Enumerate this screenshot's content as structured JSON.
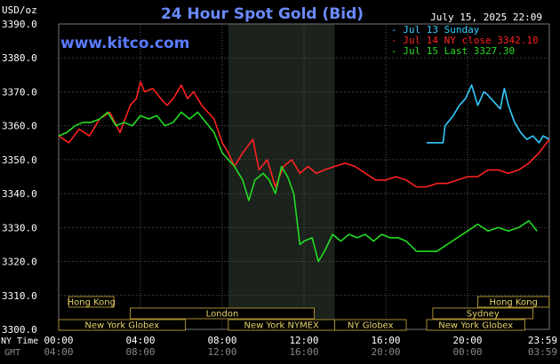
{
  "chart_data": {
    "type": "line",
    "title": "24 Hour Spot Gold (Bid)",
    "y_unit": "USD/oz",
    "timestamp": "July 15, 2025 22:09",
    "watermark": "www.kitco.com",
    "ylim": [
      3300,
      3390
    ],
    "yticks": [
      "3390.0",
      "3380.0",
      "3370.0",
      "3360.0",
      "3350.0",
      "3340.0",
      "3330.0",
      "3320.0",
      "3310.0",
      "3300.0"
    ],
    "x_row_labels": {
      "ny": "NY Time",
      "gmt": "GMT"
    },
    "x_ticks_ny": [
      "00:00",
      "04:00",
      "08:00",
      "12:00",
      "16:00",
      "20:00",
      "23:59"
    ],
    "x_ticks_gmt": [
      "04:00",
      "08:00",
      "12:00",
      "16:00",
      "20:00",
      "00:00",
      "03:59"
    ],
    "grid": true,
    "legend_position": "top-right",
    "series": [
      {
        "name": "Jul 13 Sunday",
        "color": "#33ccff",
        "x": [
          18.0,
          18.8,
          18.9,
          19.3,
          19.6,
          19.9,
          20.2,
          20.5,
          20.8,
          21.0,
          21.3,
          21.6,
          21.8,
          22.0,
          22.3,
          22.6,
          22.9,
          23.2,
          23.5,
          23.7,
          23.99
        ],
        "y": [
          3355,
          3355,
          3360,
          3363,
          3366,
          3368,
          3372,
          3366,
          3370,
          3369,
          3367,
          3365,
          3371,
          3366,
          3361,
          3358,
          3356,
          3357,
          3355,
          3357,
          3356
        ]
      },
      {
        "name": "Jul 14 NY close 3342.10",
        "color": "#ff2222",
        "x": [
          0,
          0.5,
          1.0,
          1.5,
          2.0,
          2.5,
          3.0,
          3.5,
          3.8,
          4.0,
          4.2,
          4.6,
          5.0,
          5.3,
          5.6,
          6.0,
          6.3,
          6.6,
          7.0,
          7.3,
          7.6,
          8.0,
          8.3,
          8.6,
          9.0,
          9.5,
          9.8,
          10.2,
          10.6,
          11.0,
          11.4,
          11.8,
          12.2,
          12.6,
          13.0,
          13.5,
          14.0,
          14.5,
          15.0,
          15.5,
          16.0,
          16.5,
          17.0,
          17.5,
          18.0,
          18.5,
          19.0,
          19.5,
          20.0,
          20.5,
          21.0,
          21.5,
          22.0,
          22.5,
          23.0,
          23.5,
          23.99
        ],
        "y": [
          3357,
          3355,
          3359,
          3357,
          3362,
          3364,
          3358,
          3366,
          3368,
          3373,
          3370,
          3371,
          3368,
          3366,
          3368,
          3372,
          3368,
          3370,
          3366,
          3364,
          3362,
          3355,
          3352,
          3348,
          3352,
          3356,
          3347,
          3350,
          3342,
          3348,
          3350,
          3346,
          3348,
          3346,
          3347,
          3348,
          3349,
          3348,
          3346,
          3344,
          3344,
          3345,
          3344,
          3342,
          3342,
          3343,
          3343,
          3344,
          3345,
          3345,
          3347,
          3347,
          3346,
          3347,
          3349,
          3352,
          3356
        ]
      },
      {
        "name": "Jul 15 Last 3327.30",
        "color": "#22dd22",
        "x": [
          0,
          0.4,
          0.8,
          1.2,
          1.6,
          2.0,
          2.4,
          2.8,
          3.2,
          3.6,
          4.0,
          4.4,
          4.8,
          5.2,
          5.6,
          6.0,
          6.4,
          6.8,
          7.2,
          7.6,
          8.0,
          8.3,
          8.6,
          9.0,
          9.3,
          9.6,
          10.0,
          10.3,
          10.6,
          10.9,
          11.2,
          11.5,
          11.8,
          12.0,
          12.4,
          12.7,
          13.0,
          13.4,
          13.8,
          14.2,
          14.6,
          15.0,
          15.4,
          15.8,
          16.2,
          16.6,
          17.0,
          17.5,
          18.0,
          18.5,
          19.0,
          19.5,
          20.0,
          20.5,
          21.0,
          21.5,
          22.0,
          22.5,
          23.0,
          23.4
        ],
        "y": [
          3357,
          3358,
          3360,
          3361,
          3361,
          3362,
          3364,
          3360,
          3361,
          3360,
          3363,
          3362,
          3363,
          3360,
          3361,
          3364,
          3362,
          3364,
          3361,
          3358,
          3352,
          3350,
          3348,
          3344,
          3338,
          3344,
          3346,
          3344,
          3340,
          3348,
          3345,
          3340,
          3325,
          3326,
          3327,
          3320,
          3323,
          3328,
          3326,
          3328,
          3327,
          3328,
          3326,
          3328,
          3327,
          3327,
          3326,
          3323,
          3323,
          3323,
          3325,
          3327,
          3329,
          3331,
          3329,
          3330,
          3329,
          3330,
          3332,
          3329
        ]
      }
    ],
    "market_sessions": [
      {
        "label": "Hong Kong",
        "start": 0.5,
        "end": 2.7
      },
      {
        "label": "London",
        "start": 3.5,
        "end": 12.5
      },
      {
        "label": "New York Globex",
        "start": 0.0,
        "end": 6.2
      },
      {
        "label": "New York NYMEX",
        "start": 8.3,
        "end": 13.5
      },
      {
        "label": "NY Globex",
        "start": 13.5,
        "end": 17.0
      },
      {
        "label": "Hong Kong",
        "start": 20.5,
        "end": 23.99
      },
      {
        "label": "Sydney",
        "start": 18.3,
        "end": 23.2
      },
      {
        "label": "New York Globex",
        "start": 18.0,
        "end": 22.8
      }
    ],
    "shaded_band": {
      "start": 8.3,
      "end": 13.5
    }
  }
}
